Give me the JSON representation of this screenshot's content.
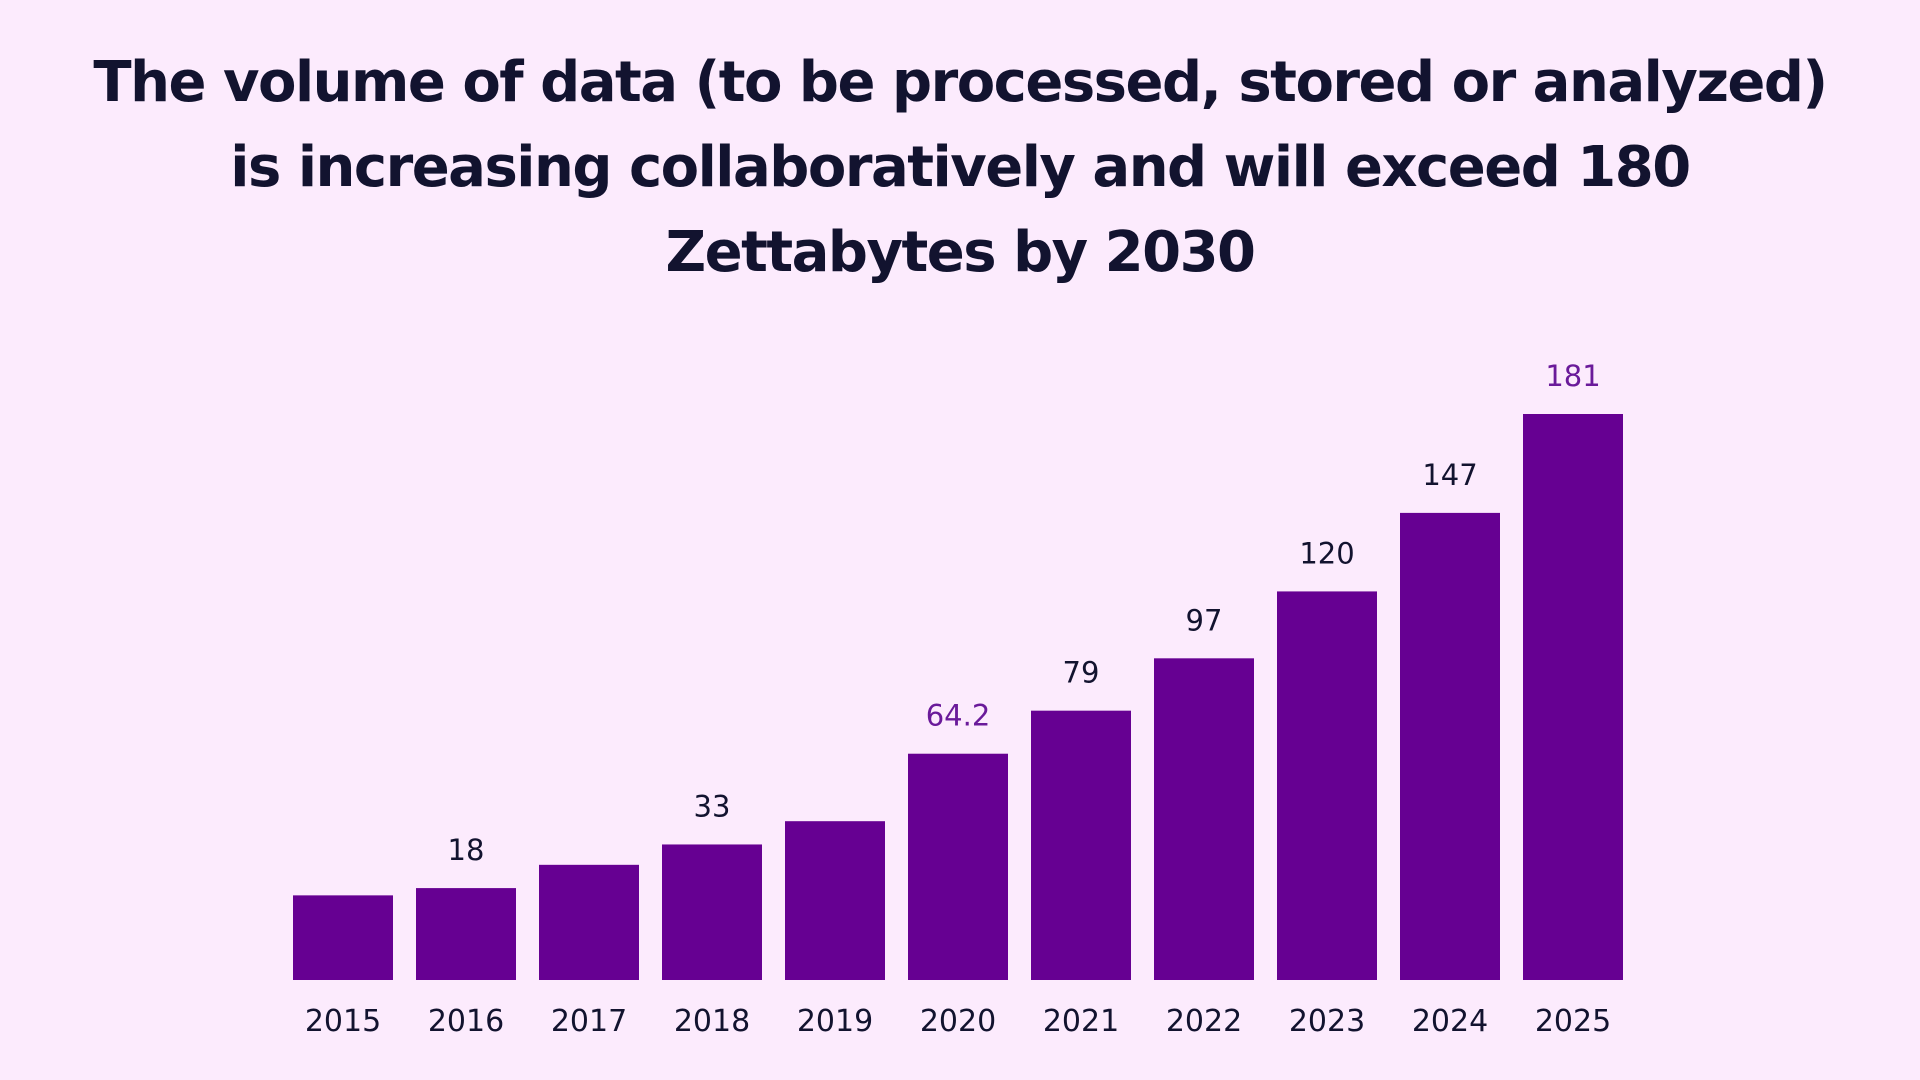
{
  "chart_data": {
    "type": "bar",
    "title": [
      "The volume of data (to be processed, stored or analyzed)",
      "is increasing collaboratively and will exceed 180",
      "Zettabytes by 2030"
    ],
    "categories": [
      "2015",
      "2016",
      "2017",
      "2018",
      "2019",
      "2020",
      "2021",
      "2022",
      "2023",
      "2024",
      "2025"
    ],
    "values": [
      15.5,
      18,
      26,
      33,
      41,
      64.2,
      79,
      97,
      120,
      147,
      181
    ],
    "data_labels": [
      "",
      "18",
      "",
      "33",
      "",
      "64.2",
      "79",
      "97",
      "120",
      "147",
      "181"
    ],
    "highlighted_labels": [
      "2020",
      "2025"
    ],
    "ylim": [
      -13.6,
      190
    ],
    "grid": false,
    "colors": {
      "bar": "#660092",
      "label": "#12132f",
      "highlight_label": "#6a1a9a",
      "background": "#fcebfd"
    }
  }
}
